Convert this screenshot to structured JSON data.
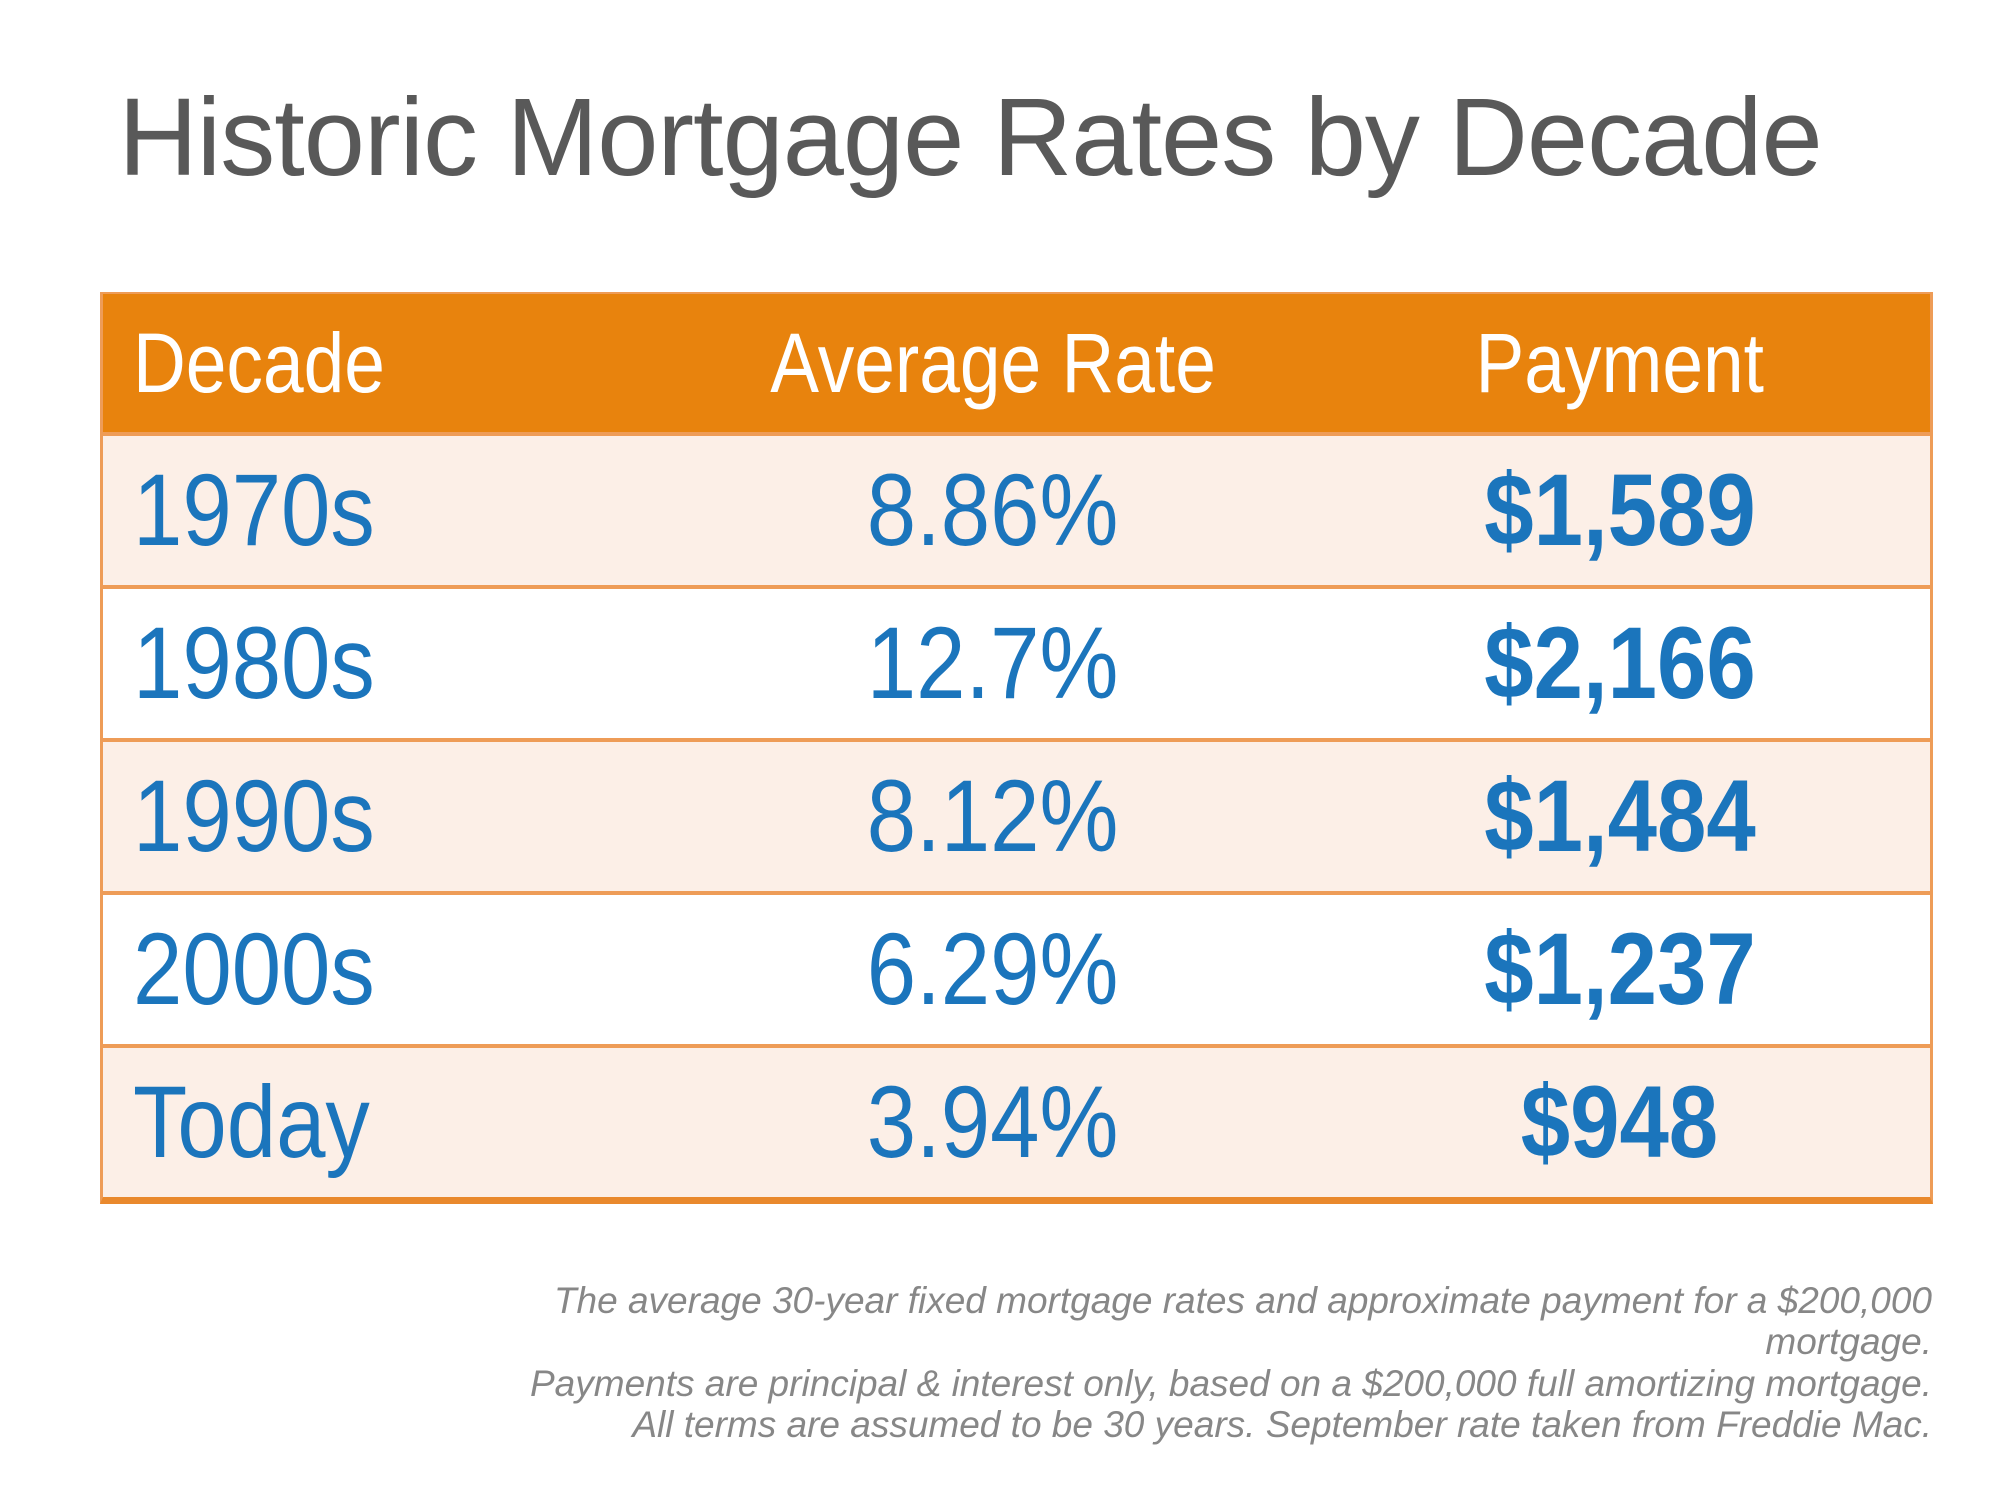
{
  "title": "Historic Mortgage Rates by Decade",
  "table": {
    "columns": [
      "Decade",
      "Average Rate",
      "Payment"
    ],
    "rows": [
      {
        "decade": "1970s",
        "rate": "8.86%",
        "payment": "$1,589"
      },
      {
        "decade": "1980s",
        "rate": "12.7%",
        "payment": "$2,166"
      },
      {
        "decade": "1990s",
        "rate": "8.12%",
        "payment": "$1,484"
      },
      {
        "decade": "2000s",
        "rate": "6.29%",
        "payment": "$1,237"
      },
      {
        "decade": "Today",
        "rate": "3.94%",
        "payment": "$948"
      }
    ]
  },
  "footnote": {
    "lines": [
      "The average 30-year fixed mortgage rates and approximate payment for a $200,000 mortgage.",
      "Payments are principal & interest only, based on a $200,000 full amortizing mortgage.",
      "All terms are assumed to be 30 years. September rate taken from Freddie Mac."
    ]
  },
  "colors": {
    "title_gray": "#595959",
    "header_orange": "#e8830d",
    "border_orange": "#ee9c57",
    "bottom_border_orange": "#e9892d",
    "row_peach": "#fcefe7",
    "value_blue": "#1b75bc",
    "footnote_gray": "#878787"
  },
  "chart_data": {
    "type": "table",
    "title": "Historic Mortgage Rates by Decade",
    "columns": [
      "Decade",
      "Average Rate",
      "Payment"
    ],
    "categories": [
      "1970s",
      "1980s",
      "1990s",
      "2000s",
      "Today"
    ],
    "series": [
      {
        "name": "Average Rate (%)",
        "values": [
          8.86,
          12.7,
          8.12,
          6.29,
          3.94
        ]
      },
      {
        "name": "Payment ($)",
        "values": [
          1589,
          2166,
          1484,
          1237,
          948
        ]
      }
    ],
    "notes": "Rates are average 30-year fixed; payments are principal & interest on a $200,000 fully amortizing 30-year mortgage; September rate from Freddie Mac."
  }
}
